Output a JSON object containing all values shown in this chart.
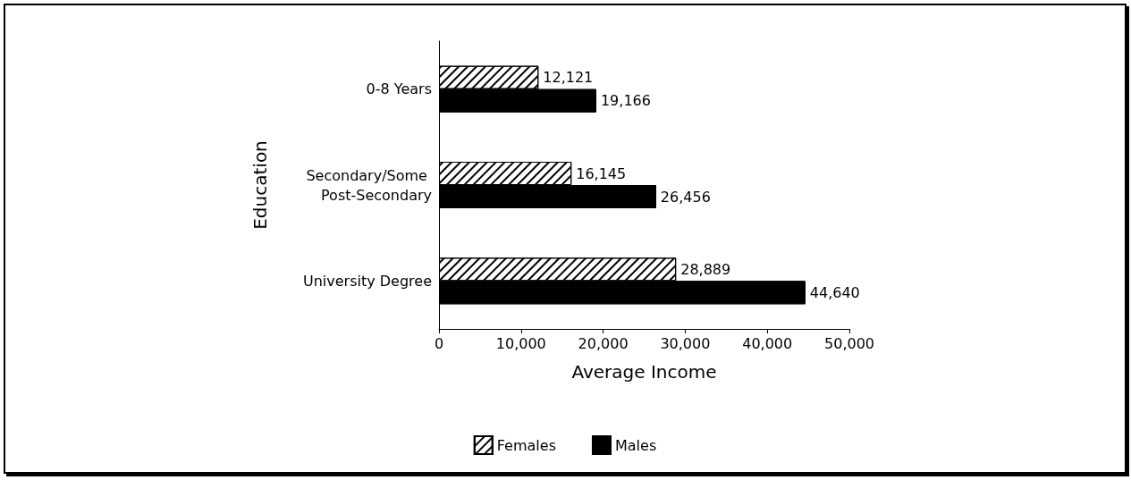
{
  "chart_data": {
    "type": "bar",
    "orientation": "horizontal",
    "xlabel": "Average Income",
    "ylabel": "Education",
    "categories": [
      "0-8 Years",
      "Secondary/Some Post-Secondary",
      "University Degree"
    ],
    "series": [
      {
        "name": "Females",
        "color": "#ffffff",
        "values": [
          12121,
          16145,
          28889
        ],
        "value_labels": [
          "12,121",
          "16,145",
          "28,889"
        ]
      },
      {
        "name": "Males",
        "color": "#000000",
        "values": [
          19166,
          26456,
          44640
        ],
        "value_labels": [
          "19,166",
          "26,456",
          "44,640"
        ]
      }
    ],
    "xlim": [
      0,
      50000
    ],
    "xticks": [
      0,
      {
        "value": 10000,
        "label": "10,000"
      },
      {
        "value": 20000,
        "label": "20,000"
      },
      {
        "value": 30000,
        "label": "30,000"
      },
      {
        "value": 40000,
        "label": "40,000"
      },
      {
        "value": 50000,
        "label": "50,000"
      }
    ],
    "grid": false,
    "legend": "bottom"
  }
}
